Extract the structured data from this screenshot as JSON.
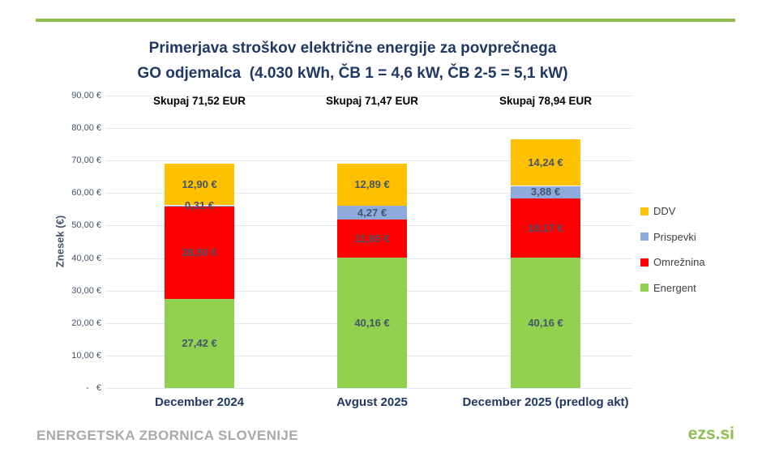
{
  "slide": {
    "title": {
      "line1": "Primerjava stroškov električne energije za povprečnega",
      "line2": "GO odjemalca  (4.030 kWh, ČB 1 = 4,6 kW, ČB 2-5 = 5,1 kW)"
    },
    "footer": {
      "left": "ENERGETSKA ZBORNICA SLOVENIJE",
      "right": "ezs.si"
    }
  },
  "colors": {
    "accent_line": "#90BC4D",
    "title_navy": "#1F3864",
    "value_label": "#44546A",
    "gridline": "#E3E9F1",
    "footer_gray": "#A9A9A9",
    "footer_green": "#8CC04D"
  },
  "chart_data": {
    "type": "bar",
    "stacked": true,
    "title": "Primerjava stroškov električne energije za povprečnega GO odjemalca (4.030 kWh, ČB 1 = 4,6 kW, ČB 2-5 = 5,1 kW)",
    "xlabel": "",
    "ylabel": "Znesek (€)",
    "ylim": [
      0,
      90
    ],
    "grid": true,
    "legend_position": "right",
    "categories": [
      "December 2024",
      "Avgust 2025",
      "December 2025 (predlog akt)"
    ],
    "series": [
      {
        "name": "Energent",
        "key": "energent",
        "color": "#92D050",
        "values": [
          27.42,
          40.16,
          40.16
        ],
        "labels": [
          "27,42 €",
          "40,16 €",
          "40,16 €"
        ]
      },
      {
        "name": "Omrežnina",
        "key": "omreznina",
        "color": "#FF0000",
        "values": [
          28.5,
          11.65,
          18.17
        ],
        "labels": [
          "28,50 €",
          "11,65 €",
          "18,17 €"
        ]
      },
      {
        "name": "Prispevki",
        "key": "prispevki",
        "color": "#8FAADC",
        "values": [
          0.31,
          4.27,
          3.88
        ],
        "labels": [
          "0,31 €",
          "4,27 €",
          "3,88 €"
        ]
      },
      {
        "name": "DDV",
        "key": "ddv",
        "color": "#FFC000",
        "values": [
          12.9,
          12.89,
          14.24
        ],
        "labels": [
          "12,90 €",
          "12,89 €",
          "14,24 €"
        ]
      }
    ],
    "totals": [
      "Skupaj 71,52 EUR",
      "Skupaj 71,47 EUR",
      "Skupaj 78,94 EUR"
    ],
    "yticks": [
      {
        "value": 90,
        "label": "90,00 €"
      },
      {
        "value": 80,
        "label": "80,00 €"
      },
      {
        "value": 70,
        "label": "70,00 €"
      },
      {
        "value": 60,
        "label": "60,00 €"
      },
      {
        "value": 50,
        "label": "50,00 €"
      },
      {
        "value": 40,
        "label": "40,00 €"
      },
      {
        "value": 30,
        "label": "30,00 €"
      },
      {
        "value": 20,
        "label": "20,00 €"
      },
      {
        "value": 10,
        "label": "10,00 €"
      },
      {
        "value": 0,
        "label": "-   €"
      }
    ],
    "legend_order_top_to_bottom": [
      "DDV",
      "Prispevki",
      "Omrežnina",
      "Energent"
    ]
  }
}
